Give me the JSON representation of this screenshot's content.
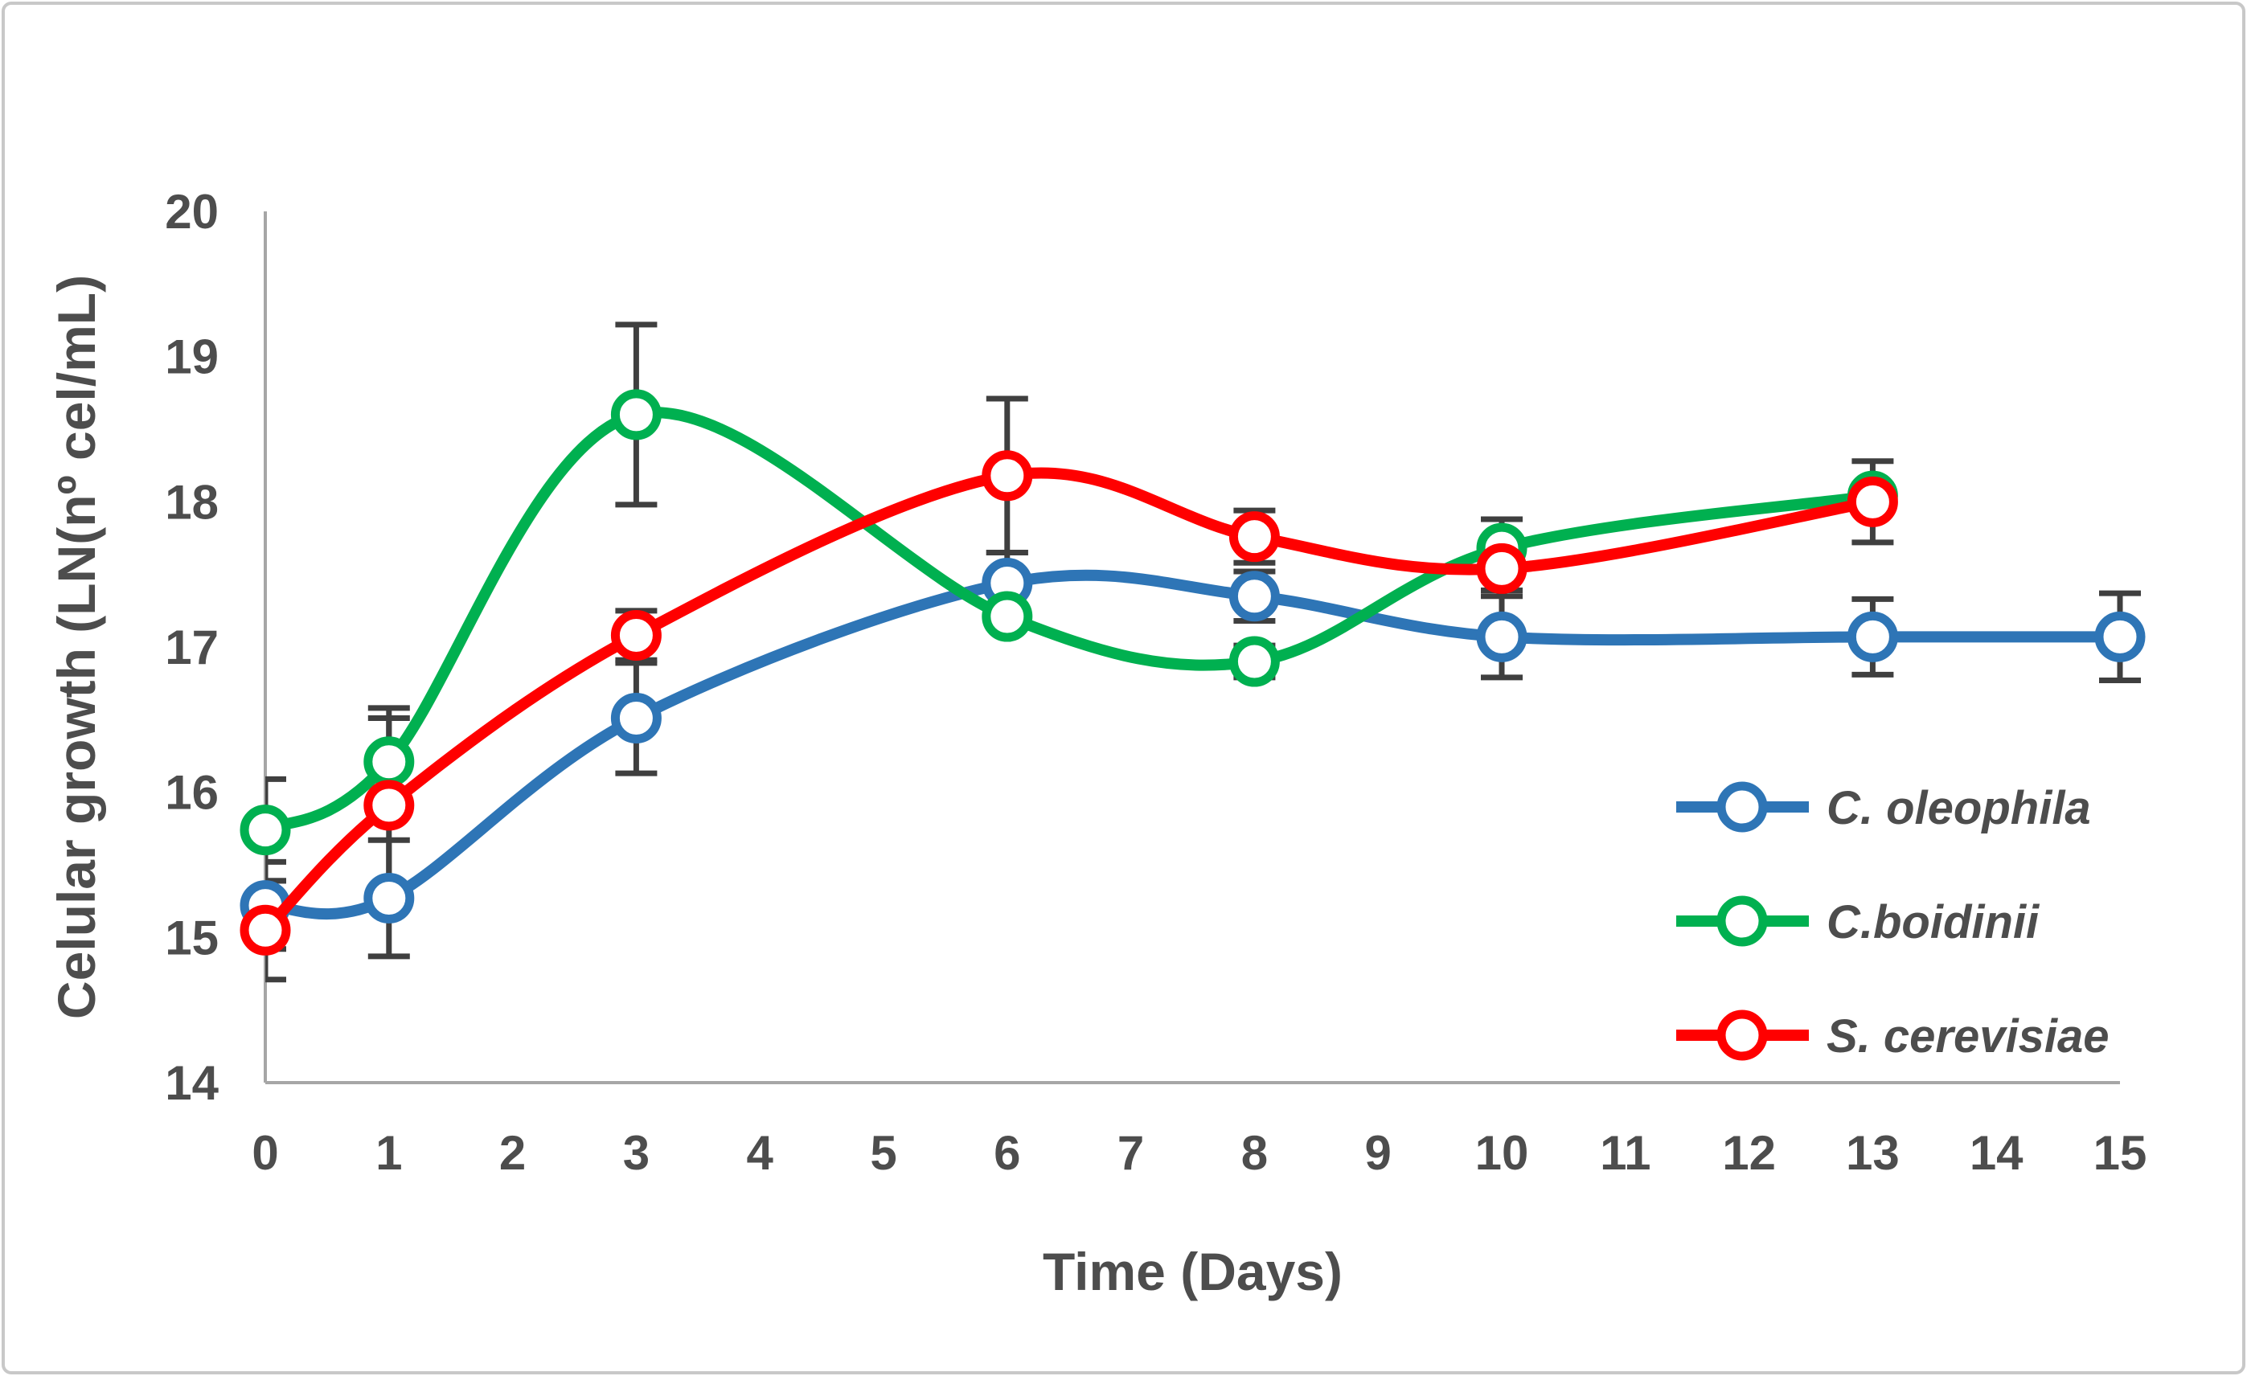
{
  "figure": {
    "background": "#FFFFFF",
    "border_color": "#C8C8C8",
    "axis_line_color": "#A6A6A6",
    "error_bar_color": "#3F3F3F",
    "text_color": "#4D4D4D"
  },
  "chart_data": {
    "type": "line",
    "title": "",
    "xlabel": "Time (Days)",
    "ylabel": "Celular growth (LN(nº cel/mL)",
    "xlim": [
      0,
      15
    ],
    "ylim": [
      14,
      20
    ],
    "x_ticks": [
      0,
      1,
      2,
      3,
      4,
      5,
      6,
      7,
      8,
      9,
      10,
      11,
      12,
      13,
      14,
      15
    ],
    "y_ticks": [
      14,
      15,
      16,
      17,
      18,
      19,
      20
    ],
    "grid": false,
    "smooth_lines": true,
    "error_bars": true,
    "legend_position": "inside-right",
    "series": [
      {
        "name": "C. oleophila",
        "color": "#2E75B6",
        "x": [
          0,
          1,
          3,
          6,
          8,
          10,
          13,
          15
        ],
        "y": [
          15.22,
          15.27,
          16.51,
          17.44,
          17.35,
          17.07,
          17.07,
          17.07
        ],
        "yerr": [
          0.3,
          0.4,
          0.38,
          0.21,
          0.17,
          0.28,
          0.26,
          0.3
        ]
      },
      {
        "name": "C.boidinii",
        "color": "#00B050",
        "x": [
          0,
          1,
          3,
          6,
          8,
          10,
          13
        ],
        "y": [
          15.74,
          16.21,
          18.6,
          17.21,
          16.9,
          17.68,
          18.04
        ],
        "yerr": [
          0.35,
          0.37,
          0.62,
          0.08,
          0.11,
          0.2,
          0.08
        ]
      },
      {
        "name": "S. cerevisiae",
        "color": "#FF0000",
        "x": [
          0,
          1,
          3,
          6,
          8,
          10,
          13
        ],
        "y": [
          15.05,
          15.91,
          17.08,
          18.18,
          17.76,
          17.54,
          18.0
        ],
        "yerr": [
          0.34,
          0.6,
          0.17,
          0.53,
          0.18,
          0.15,
          0.28
        ]
      }
    ]
  }
}
